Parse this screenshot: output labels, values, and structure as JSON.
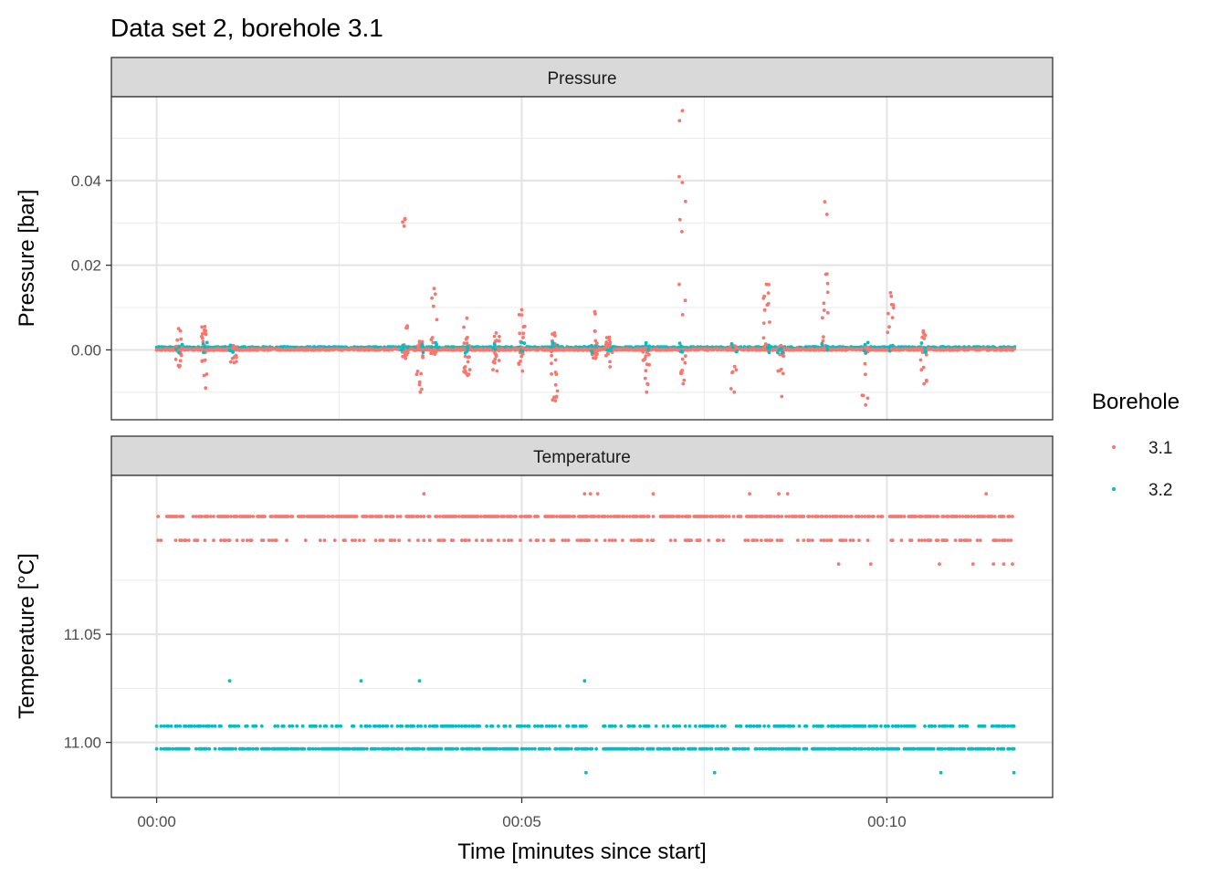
{
  "title": "Data set 2, borehole 3.1",
  "xlabel": "Time [minutes since start]",
  "x_ticks": [
    "00:00",
    "00:05",
    "00:10"
  ],
  "legend": {
    "title": "Borehole",
    "entries": [
      {
        "label": "3.1",
        "color": "#F8766D"
      },
      {
        "label": "3.2",
        "color": "#00BFC4"
      }
    ]
  },
  "chart_data": [
    {
      "type": "scatter",
      "strip": "Pressure",
      "ylabel": "Pressure [bar]",
      "y_ticks": [
        "0.00",
        "0.02",
        "0.04"
      ],
      "y_tick_values": [
        0.0,
        0.02,
        0.04
      ],
      "ylim": [
        -0.0165,
        0.0598
      ],
      "xlim_minutes": [
        -0.62,
        12.27
      ],
      "grid": true,
      "series": [
        {
          "name": "3.1",
          "color": "#F8766D",
          "events": [
            {
              "t": 0.3,
              "max": 0.005,
              "min": -0.004
            },
            {
              "t": 0.66,
              "max": 0.0055,
              "min": -0.009
            },
            {
              "t": 1.05,
              "max": 0.001,
              "min": -0.003
            },
            {
              "t": 3.4,
              "max": 0.031,
              "min": -0.002
            },
            {
              "t": 3.6,
              "max": 0.002,
              "min": -0.01
            },
            {
              "t": 3.8,
              "max": 0.0145,
              "min": -0.001
            },
            {
              "t": 4.25,
              "max": 0.0075,
              "min": -0.006
            },
            {
              "t": 4.65,
              "max": 0.004,
              "min": -0.005
            },
            {
              "t": 5.0,
              "max": 0.0095,
              "min": -0.005
            },
            {
              "t": 5.45,
              "max": 0.004,
              "min": -0.012
            },
            {
              "t": 6.0,
              "max": 0.009,
              "min": -0.002
            },
            {
              "t": 6.2,
              "max": 0.003,
              "min": -0.004
            },
            {
              "t": 6.7,
              "max": 0.001,
              "min": -0.01
            },
            {
              "t": 7.2,
              "max": 0.0565,
              "min": -0.008
            },
            {
              "t": 7.9,
              "max": 0.001,
              "min": -0.01
            },
            {
              "t": 8.35,
              "max": 0.0155,
              "min": 0.0
            },
            {
              "t": 8.55,
              "max": 0.001,
              "min": -0.011
            },
            {
              "t": 9.15,
              "max": 0.035,
              "min": 0.001
            },
            {
              "t": 9.7,
              "max": 0.001,
              "min": -0.013
            },
            {
              "t": 10.05,
              "max": 0.0135,
              "min": 0.0
            },
            {
              "t": 10.5,
              "max": 0.0045,
              "min": -0.008
            }
          ]
        },
        {
          "name": "3.2",
          "color": "#00BFC4",
          "baseline": 0.0005
        }
      ]
    },
    {
      "type": "scatter",
      "strip": "Temperature",
      "ylabel": "Temperature [°C]",
      "y_ticks": [
        "11.00",
        "11.05"
      ],
      "y_tick_values": [
        11.0,
        11.05
      ],
      "ylim": [
        10.9745,
        11.1235
      ],
      "xlim_minutes": [
        -0.62,
        12.27
      ],
      "grid": true,
      "series": [
        {
          "name": "3.1",
          "color": "#F8766D",
          "levels": [
            11.115,
            11.1045,
            11.0935,
            11.0825
          ]
        },
        {
          "name": "3.2",
          "color": "#00BFC4",
          "levels": [
            11.0285,
            11.0075,
            10.997,
            10.986
          ]
        }
      ]
    }
  ]
}
